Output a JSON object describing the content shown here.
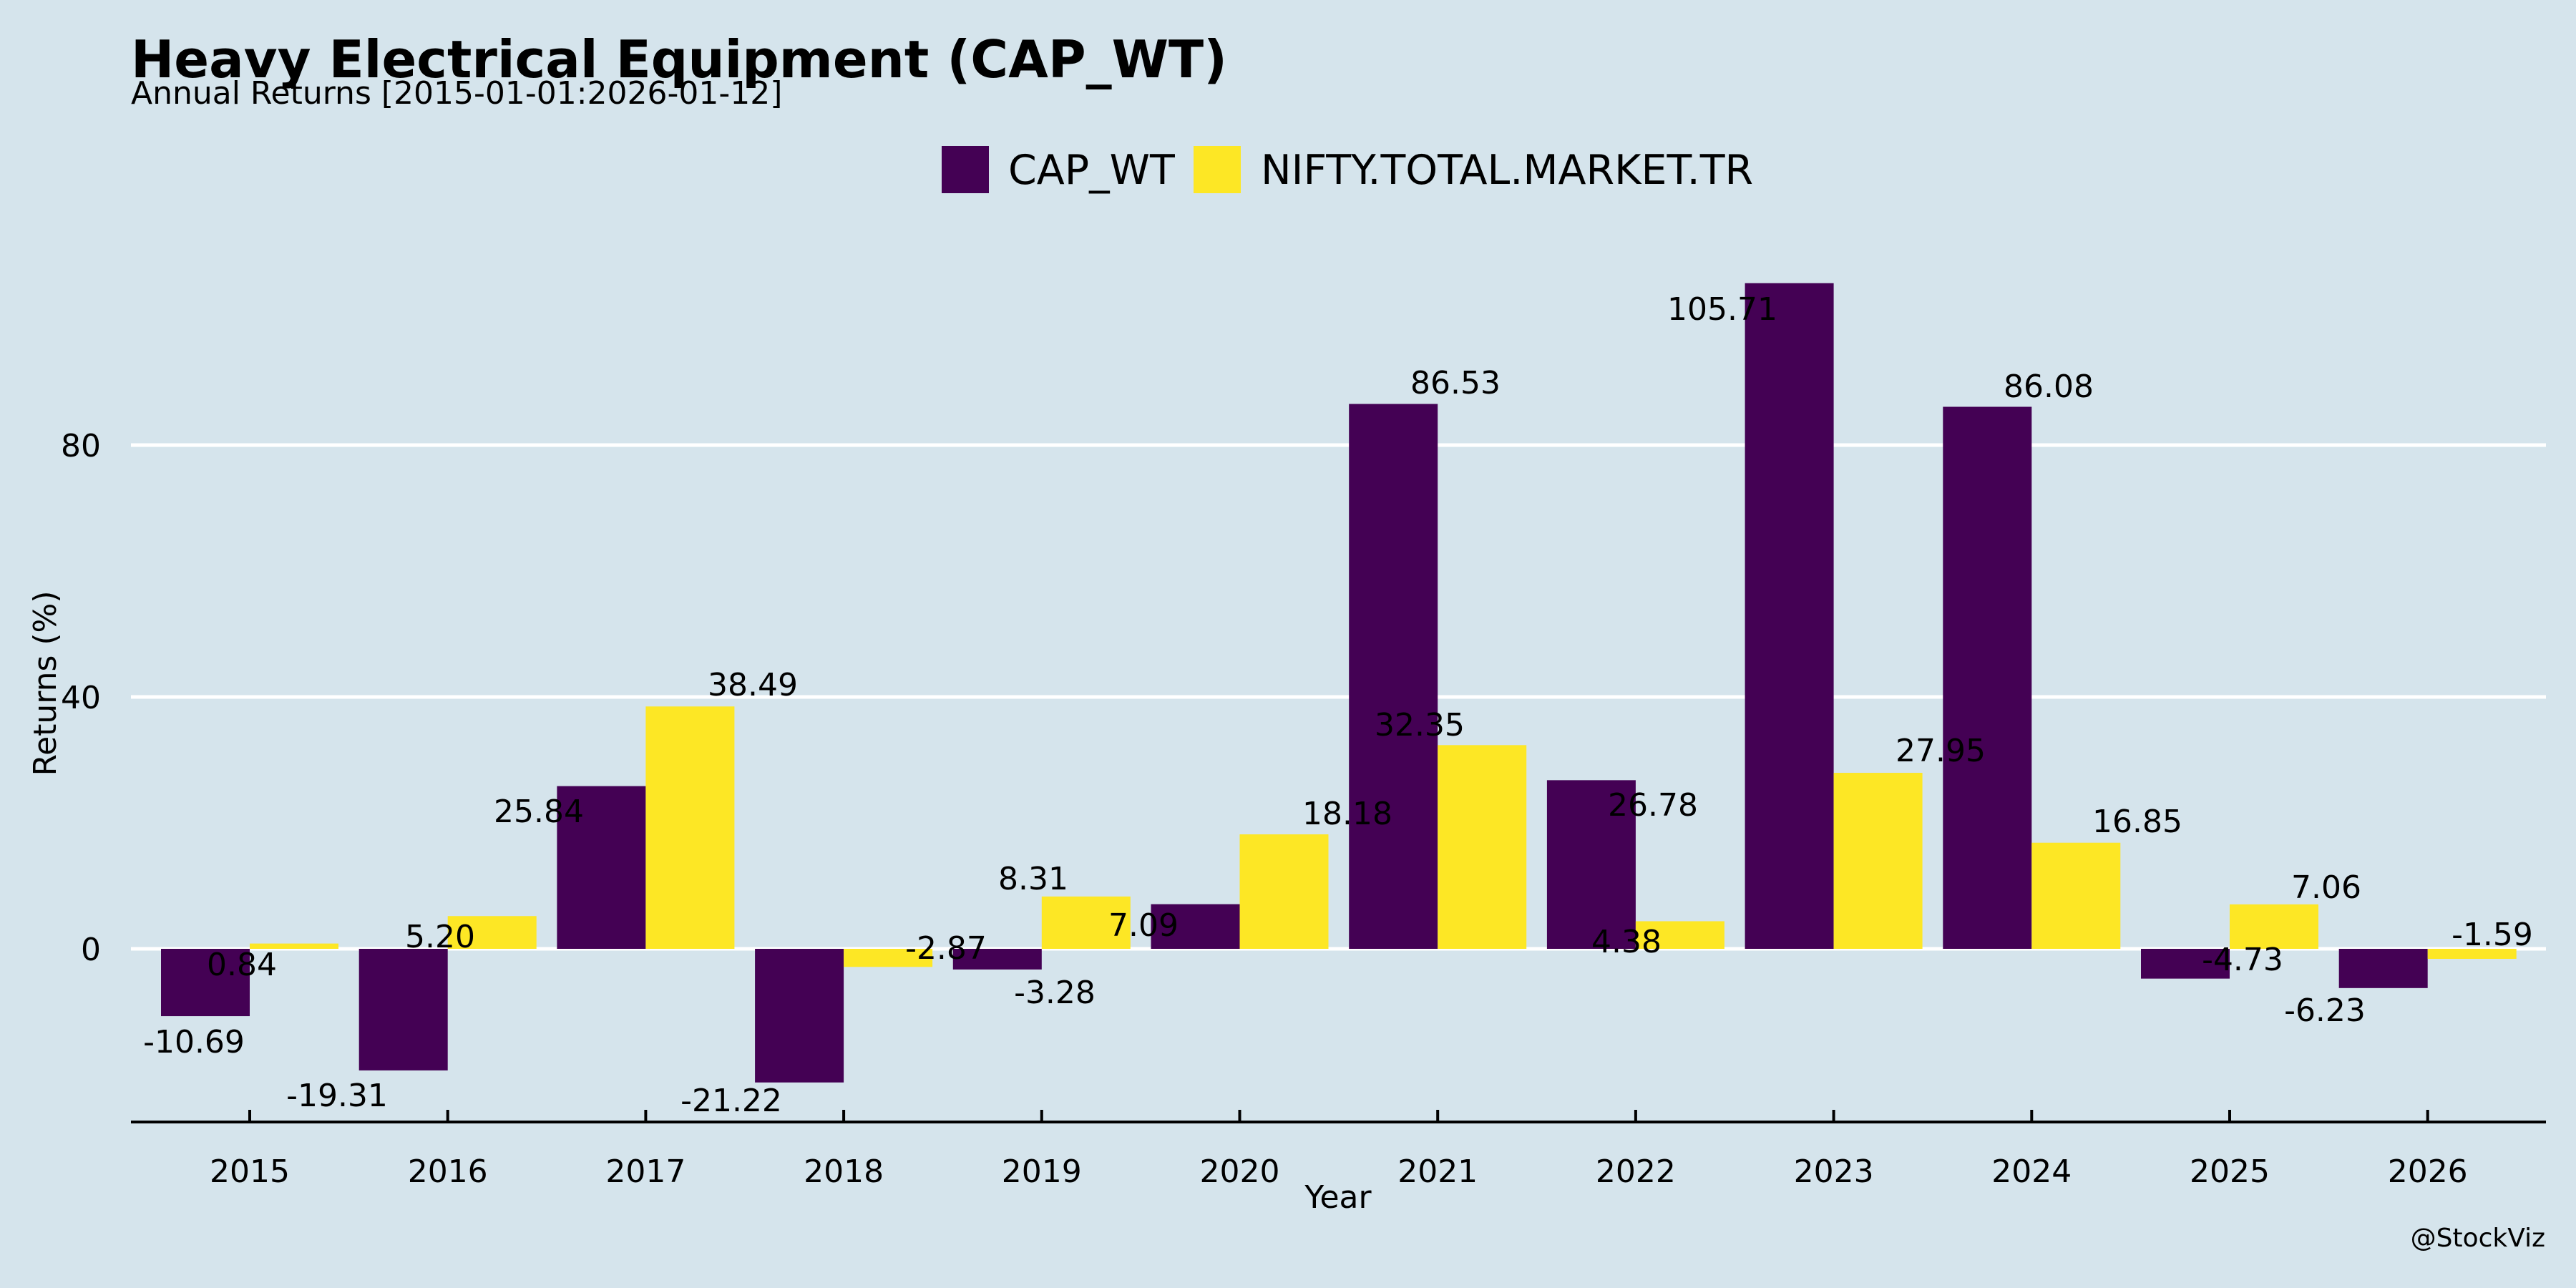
{
  "chart_data": {
    "type": "bar",
    "title": "Heavy Electrical Equipment (CAP_WT)",
    "subtitle": "Annual Returns [2015-01-01:2026-01-12]",
    "xlabel": "Year",
    "ylabel": "Returns (%)",
    "categories": [
      "2015",
      "2016",
      "2017",
      "2018",
      "2019",
      "2020",
      "2021",
      "2022",
      "2023",
      "2024",
      "2025",
      "2026"
    ],
    "series": [
      {
        "name": "CAP_WT",
        "color": "#440154",
        "values": [
          -10.69,
          -19.31,
          25.84,
          -21.22,
          -3.28,
          7.09,
          86.53,
          26.78,
          105.71,
          86.08,
          -4.73,
          -6.23
        ],
        "labels": [
          "-10.69",
          "-19.31",
          "25.84",
          "-21.22",
          "-3.28",
          "7.09",
          "86.53",
          "26.78",
          "105.71",
          "86.08",
          "-4.73",
          "-6.23"
        ]
      },
      {
        "name": "NIFTY.TOTAL.MARKET.TR",
        "color": "#fde725",
        "values": [
          0.84,
          5.2,
          38.49,
          -2.87,
          8.31,
          18.18,
          32.35,
          4.38,
          27.95,
          16.85,
          7.06,
          -1.59
        ],
        "labels": [
          "0.84",
          "5.20",
          "38.49",
          "-2.87",
          "8.31",
          "18.18",
          "32.35",
          "4.38",
          "27.95",
          "16.85",
          "7.06",
          "-1.59"
        ]
      }
    ],
    "yticks": [
      0,
      40,
      80
    ],
    "ytick_labels": [
      "0",
      "40",
      "80"
    ],
    "ylim": [
      -27.5,
      120
    ],
    "grid": "horizontal",
    "legend_position": "top-center",
    "watermark": "@StockViz"
  }
}
